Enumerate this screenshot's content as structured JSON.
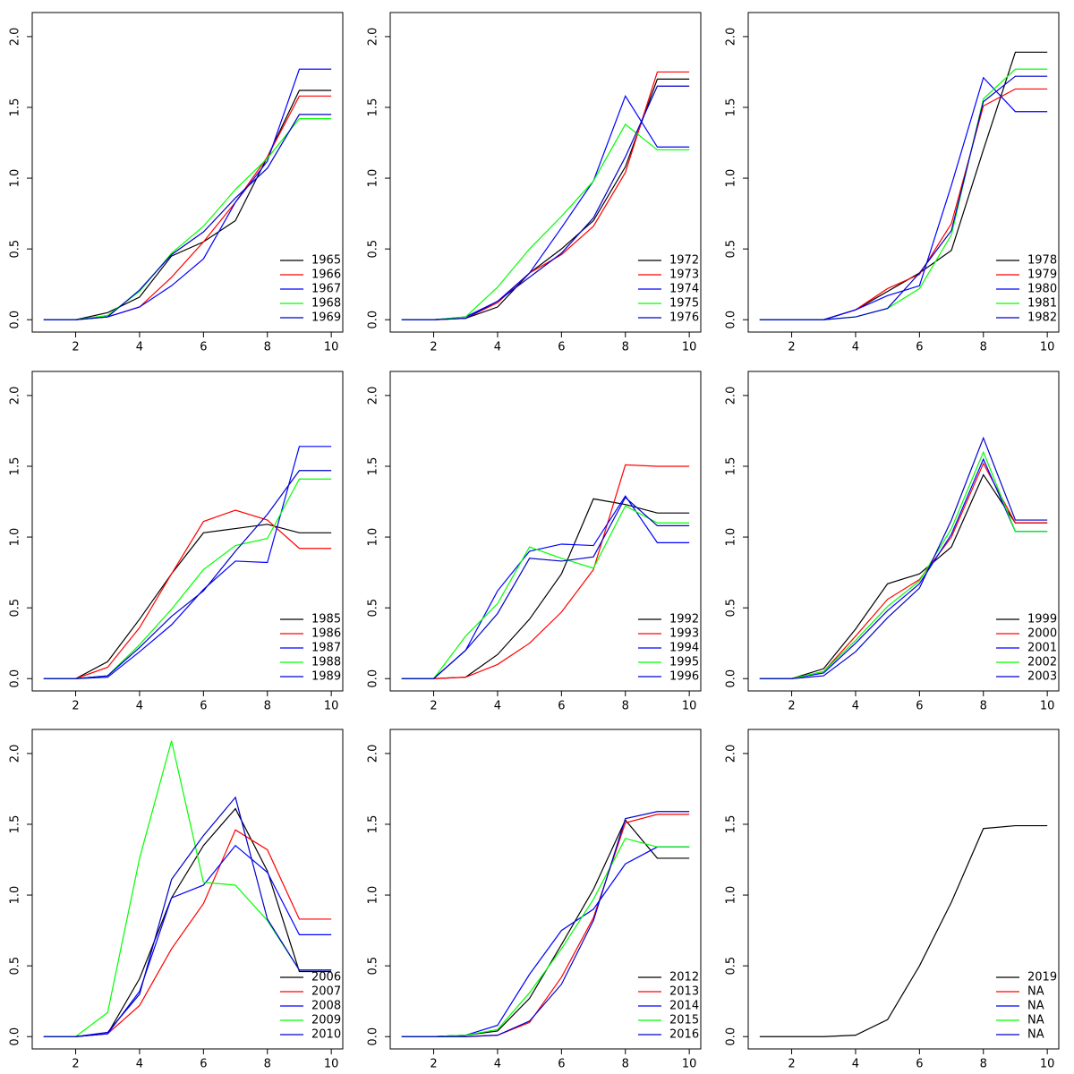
{
  "chart_data": [
    {
      "type": "line",
      "x": [
        1,
        2,
        3,
        4,
        5,
        6,
        7,
        8,
        9,
        10
      ],
      "xlim": [
        0.64,
        10.36
      ],
      "ylim": [
        -0.087,
        2.17
      ],
      "xticks": [
        2,
        4,
        6,
        8,
        10
      ],
      "yticks": [
        {
          "value": 0,
          "label": "0.0"
        },
        {
          "value": 0.5,
          "label": "0.5"
        },
        {
          "value": 1,
          "label": "1.0"
        },
        {
          "value": 1.5,
          "label": "1.5"
        },
        {
          "value": 2,
          "label": "2.0"
        }
      ],
      "legend": "bottomright",
      "series": [
        {
          "name": "1965",
          "color": "#000000",
          "values": [
            0,
            0,
            0.05,
            0.16,
            0.45,
            0.55,
            0.7,
            1.15,
            1.62,
            1.62
          ]
        },
        {
          "name": "1966",
          "color": "#ff0000",
          "values": [
            0,
            0,
            0.02,
            0.09,
            0.3,
            0.55,
            0.83,
            1.15,
            1.58,
            1.58
          ]
        },
        {
          "name": "1967",
          "color": "#0000ff",
          "values": [
            0,
            0,
            0.02,
            0.09,
            0.24,
            0.43,
            0.83,
            1.12,
            1.77,
            1.77
          ]
        },
        {
          "name": "1968",
          "color": "#00ff00",
          "values": [
            0,
            0,
            0.03,
            0.2,
            0.47,
            0.66,
            0.92,
            1.14,
            1.42,
            1.42
          ]
        },
        {
          "name": "1969",
          "color": "#0000cc",
          "values": [
            0,
            0,
            0.02,
            0.21,
            0.46,
            0.62,
            0.86,
            1.07,
            1.45,
            1.45
          ]
        }
      ]
    },
    {
      "type": "line",
      "x": [
        1,
        2,
        3,
        4,
        5,
        6,
        7,
        8,
        9,
        10
      ],
      "xlim": [
        0.64,
        10.36
      ],
      "ylim": [
        -0.087,
        2.17
      ],
      "xticks": [
        2,
        4,
        6,
        8,
        10
      ],
      "yticks": [
        {
          "value": 0,
          "label": "0.0"
        },
        {
          "value": 0.5,
          "label": "0.5"
        },
        {
          "value": 1,
          "label": "1.0"
        },
        {
          "value": 1.5,
          "label": "1.5"
        },
        {
          "value": 2,
          "label": "2.0"
        }
      ],
      "legend": "bottomright",
      "series": [
        {
          "name": "1972",
          "color": "#000000",
          "values": [
            0,
            0,
            0.01,
            0.09,
            0.33,
            0.5,
            0.7,
            1.08,
            1.7,
            1.7
          ]
        },
        {
          "name": "1973",
          "color": "#ff0000",
          "values": [
            0,
            0,
            0.01,
            0.12,
            0.33,
            0.46,
            0.66,
            1.04,
            1.75,
            1.75
          ]
        },
        {
          "name": "1974",
          "color": "#0000ff",
          "values": [
            0,
            0,
            0.02,
            0.13,
            0.33,
            0.65,
            0.98,
            1.58,
            1.22,
            1.22
          ]
        },
        {
          "name": "1975",
          "color": "#00ff00",
          "values": [
            0,
            0,
            0.02,
            0.23,
            0.5,
            0.73,
            0.98,
            1.38,
            1.2,
            1.2
          ]
        },
        {
          "name": "1976",
          "color": "#0000cc",
          "values": [
            0,
            0,
            0.01,
            0.13,
            0.3,
            0.47,
            0.72,
            1.15,
            1.65,
            1.65
          ]
        }
      ]
    },
    {
      "type": "line",
      "x": [
        1,
        2,
        3,
        4,
        5,
        6,
        7,
        8,
        9,
        10
      ],
      "xlim": [
        0.64,
        10.36
      ],
      "ylim": [
        -0.087,
        2.17
      ],
      "xticks": [
        2,
        4,
        6,
        8,
        10
      ],
      "yticks": [
        {
          "value": 0,
          "label": "0.0"
        },
        {
          "value": 0.5,
          "label": "0.5"
        },
        {
          "value": 1,
          "label": "1.0"
        },
        {
          "value": 1.5,
          "label": "1.5"
        },
        {
          "value": 2,
          "label": "2.0"
        }
      ],
      "legend": "bottomright",
      "series": [
        {
          "name": "1978",
          "color": "#000000",
          "values": [
            0,
            0,
            0,
            0.07,
            0.2,
            0.33,
            0.49,
            1.2,
            1.89,
            1.89
          ]
        },
        {
          "name": "1979",
          "color": "#ff0000",
          "values": [
            0,
            0,
            0,
            0.07,
            0.22,
            0.32,
            0.68,
            1.51,
            1.63,
            1.63
          ]
        },
        {
          "name": "1980",
          "color": "#0000ff",
          "values": [
            0,
            0,
            0,
            0.07,
            0.17,
            0.24,
            0.95,
            1.71,
            1.47,
            1.47
          ]
        },
        {
          "name": "1981",
          "color": "#00ff00",
          "values": [
            0,
            0,
            0,
            0.02,
            0.08,
            0.22,
            0.6,
            1.56,
            1.77,
            1.77
          ]
        },
        {
          "name": "1982",
          "color": "#0000cc",
          "values": [
            0,
            0,
            0,
            0.02,
            0.08,
            0.33,
            0.63,
            1.54,
            1.72,
            1.72
          ]
        }
      ]
    },
    {
      "type": "line",
      "x": [
        1,
        2,
        3,
        4,
        5,
        6,
        7,
        8,
        9,
        10
      ],
      "xlim": [
        0.64,
        10.36
      ],
      "ylim": [
        -0.087,
        2.17
      ],
      "xticks": [
        2,
        4,
        6,
        8,
        10
      ],
      "yticks": [
        {
          "value": 0,
          "label": "0.0"
        },
        {
          "value": 0.5,
          "label": "0.5"
        },
        {
          "value": 1,
          "label": "1.0"
        },
        {
          "value": 1.5,
          "label": "1.5"
        },
        {
          "value": 2,
          "label": "2.0"
        }
      ],
      "legend": "bottomright",
      "series": [
        {
          "name": "1985",
          "color": "#000000",
          "values": [
            0,
            0,
            0.12,
            0.42,
            0.74,
            1.03,
            1.06,
            1.09,
            1.03,
            1.03
          ]
        },
        {
          "name": "1986",
          "color": "#ff0000",
          "values": [
            0,
            0,
            0.08,
            0.36,
            0.74,
            1.11,
            1.19,
            1.12,
            0.92,
            0.92
          ]
        },
        {
          "name": "1987",
          "color": "#0000ff",
          "values": [
            0,
            0,
            0.01,
            0.19,
            0.38,
            0.63,
            0.83,
            0.82,
            1.64,
            1.64
          ]
        },
        {
          "name": "1988",
          "color": "#00ff00",
          "values": [
            0,
            0,
            0.02,
            0.24,
            0.49,
            0.77,
            0.94,
            0.99,
            1.41,
            1.41
          ]
        },
        {
          "name": "1989",
          "color": "#0000cc",
          "values": [
            0,
            0,
            0.02,
            0.22,
            0.44,
            0.62,
            0.9,
            1.16,
            1.47,
            1.47
          ]
        }
      ]
    },
    {
      "type": "line",
      "x": [
        1,
        2,
        3,
        4,
        5,
        6,
        7,
        8,
        9,
        10
      ],
      "xlim": [
        0.64,
        10.36
      ],
      "ylim": [
        -0.087,
        2.17
      ],
      "xticks": [
        2,
        4,
        6,
        8,
        10
      ],
      "yticks": [
        {
          "value": 0,
          "label": "0.0"
        },
        {
          "value": 0.5,
          "label": "0.5"
        },
        {
          "value": 1,
          "label": "1.0"
        },
        {
          "value": 1.5,
          "label": "1.5"
        },
        {
          "value": 2,
          "label": "2.0"
        }
      ],
      "legend": "bottomright",
      "series": [
        {
          "name": "1992",
          "color": "#000000",
          "values": [
            0,
            0,
            0.01,
            0.17,
            0.42,
            0.74,
            1.27,
            1.23,
            1.17,
            1.17
          ]
        },
        {
          "name": "1993",
          "color": "#ff0000",
          "values": [
            0,
            0,
            0.01,
            0.1,
            0.25,
            0.47,
            0.77,
            1.51,
            1.5,
            1.5
          ]
        },
        {
          "name": "1994",
          "color": "#0000ff",
          "values": [
            0,
            0,
            0.2,
            0.62,
            0.9,
            0.95,
            0.94,
            1.29,
            0.96,
            0.96
          ]
        },
        {
          "name": "1995",
          "color": "#00ff00",
          "values": [
            0,
            0,
            0.3,
            0.53,
            0.93,
            0.85,
            0.78,
            1.22,
            1.1,
            1.1
          ]
        },
        {
          "name": "1996",
          "color": "#0000cc",
          "values": [
            0,
            0,
            0.2,
            0.46,
            0.85,
            0.83,
            0.86,
            1.28,
            1.08,
            1.08
          ]
        }
      ]
    },
    {
      "type": "line",
      "x": [
        1,
        2,
        3,
        4,
        5,
        6,
        7,
        8,
        9,
        10
      ],
      "xlim": [
        0.64,
        10.36
      ],
      "ylim": [
        -0.087,
        2.17
      ],
      "xticks": [
        2,
        4,
        6,
        8,
        10
      ],
      "yticks": [
        {
          "value": 0,
          "label": "0.0"
        },
        {
          "value": 0.5,
          "label": "0.5"
        },
        {
          "value": 1,
          "label": "1.0"
        },
        {
          "value": 1.5,
          "label": "1.5"
        },
        {
          "value": 2,
          "label": "2.0"
        }
      ],
      "legend": "bottomright",
      "series": [
        {
          "name": "1999",
          "color": "#000000",
          "values": [
            0,
            0,
            0.07,
            0.35,
            0.67,
            0.74,
            0.93,
            1.44,
            1.1,
            1.1
          ]
        },
        {
          "name": "2000",
          "color": "#ff0000",
          "values": [
            0,
            0,
            0.05,
            0.3,
            0.56,
            0.7,
            1.0,
            1.52,
            1.1,
            1.1
          ]
        },
        {
          "name": "2001",
          "color": "#0000ff",
          "values": [
            0,
            0,
            0.04,
            0.25,
            0.48,
            0.67,
            1.02,
            1.55,
            1.04,
            1.04
          ]
        },
        {
          "name": "2002",
          "color": "#00ff00",
          "values": [
            0,
            0,
            0.05,
            0.27,
            0.51,
            0.69,
            1.06,
            1.6,
            1.04,
            1.04
          ]
        },
        {
          "name": "2003",
          "color": "#0000cc",
          "values": [
            0,
            0,
            0.02,
            0.19,
            0.43,
            0.64,
            1.12,
            1.7,
            1.12,
            1.12
          ]
        }
      ]
    },
    {
      "type": "line",
      "x": [
        1,
        2,
        3,
        4,
        5,
        6,
        7,
        8,
        9,
        10
      ],
      "xlim": [
        0.64,
        10.36
      ],
      "ylim": [
        -0.087,
        2.17
      ],
      "xticks": [
        2,
        4,
        6,
        8,
        10
      ],
      "yticks": [
        {
          "value": 0,
          "label": "0.0"
        },
        {
          "value": 0.5,
          "label": "0.5"
        },
        {
          "value": 1,
          "label": "1.0"
        },
        {
          "value": 1.5,
          "label": "1.5"
        },
        {
          "value": 2,
          "label": "2.0"
        }
      ],
      "legend": "bottomright",
      "series": [
        {
          "name": "2006",
          "color": "#000000",
          "values": [
            0,
            0,
            0.02,
            0.41,
            0.98,
            1.35,
            1.61,
            1.17,
            0.46,
            0.46
          ]
        },
        {
          "name": "2007",
          "color": "#ff0000",
          "values": [
            0,
            0,
            0.02,
            0.22,
            0.62,
            0.94,
            1.46,
            1.32,
            0.83,
            0.83
          ]
        },
        {
          "name": "2008",
          "color": "#0000ff",
          "values": [
            0,
            0,
            0.02,
            0.32,
            0.98,
            1.07,
            1.35,
            1.16,
            0.72,
            0.72
          ]
        },
        {
          "name": "2009",
          "color": "#00ff00",
          "values": [
            0,
            0,
            0.17,
            1.26,
            2.09,
            1.09,
            1.07,
            0.82,
            0.47,
            0.47
          ]
        },
        {
          "name": "2010",
          "color": "#0000cc",
          "values": [
            0,
            0,
            0.03,
            0.3,
            1.11,
            1.42,
            1.69,
            0.83,
            0.47,
            0.47
          ]
        }
      ]
    },
    {
      "type": "line",
      "x": [
        1,
        2,
        3,
        4,
        5,
        6,
        7,
        8,
        9,
        10
      ],
      "xlim": [
        0.64,
        10.36
      ],
      "ylim": [
        -0.087,
        2.17
      ],
      "xticks": [
        2,
        4,
        6,
        8,
        10
      ],
      "yticks": [
        {
          "value": 0,
          "label": "0.0"
        },
        {
          "value": 0.5,
          "label": "0.5"
        },
        {
          "value": 1,
          "label": "1.0"
        },
        {
          "value": 1.5,
          "label": "1.5"
        },
        {
          "value": 2,
          "label": "2.0"
        }
      ],
      "legend": "bottomright",
      "series": [
        {
          "name": "2012",
          "color": "#000000",
          "values": [
            0,
            0,
            0.01,
            0.04,
            0.27,
            0.65,
            1.04,
            1.53,
            1.26,
            1.26
          ]
        },
        {
          "name": "2013",
          "color": "#ff0000",
          "values": [
            0,
            0,
            0,
            0.01,
            0.1,
            0.42,
            0.84,
            1.51,
            1.57,
            1.57
          ]
        },
        {
          "name": "2014",
          "color": "#0000ff",
          "values": [
            0,
            0,
            0.01,
            0.08,
            0.44,
            0.75,
            0.9,
            1.22,
            1.34,
            1.34
          ]
        },
        {
          "name": "2015",
          "color": "#00ff00",
          "values": [
            0,
            0,
            0.01,
            0.05,
            0.31,
            0.62,
            0.97,
            1.4,
            1.34,
            1.34
          ]
        },
        {
          "name": "2016",
          "color": "#0000cc",
          "values": [
            0,
            0,
            0,
            0.01,
            0.11,
            0.37,
            0.82,
            1.54,
            1.59,
            1.59
          ]
        }
      ]
    },
    {
      "type": "line",
      "x": [
        1,
        2,
        3,
        4,
        5,
        6,
        7,
        8,
        9,
        10
      ],
      "xlim": [
        0.64,
        10.36
      ],
      "ylim": [
        -0.087,
        2.17
      ],
      "xticks": [
        2,
        4,
        6,
        8,
        10
      ],
      "yticks": [
        {
          "value": 0,
          "label": "0.0"
        },
        {
          "value": 0.5,
          "label": "0.5"
        },
        {
          "value": 1,
          "label": "1.0"
        },
        {
          "value": 1.5,
          "label": "1.5"
        },
        {
          "value": 2,
          "label": "2.0"
        }
      ],
      "legend": "bottomright",
      "series": [
        {
          "name": "2019",
          "color": "#000000",
          "values": [
            0,
            0,
            0,
            0.01,
            0.12,
            0.5,
            0.95,
            1.47,
            1.49,
            1.49
          ]
        },
        {
          "name": "NA",
          "color": "#ff0000",
          "values": [
            null,
            null,
            null,
            null,
            null,
            null,
            null,
            null,
            null,
            null
          ]
        },
        {
          "name": "NA",
          "color": "#0000ff",
          "values": [
            null,
            null,
            null,
            null,
            null,
            null,
            null,
            null,
            null,
            null
          ]
        },
        {
          "name": "NA",
          "color": "#00ff00",
          "values": [
            null,
            null,
            null,
            null,
            null,
            null,
            null,
            null,
            null,
            null
          ]
        },
        {
          "name": "NA",
          "color": "#0000cc",
          "values": [
            null,
            null,
            null,
            null,
            null,
            null,
            null,
            null,
            null,
            null
          ]
        }
      ]
    }
  ]
}
